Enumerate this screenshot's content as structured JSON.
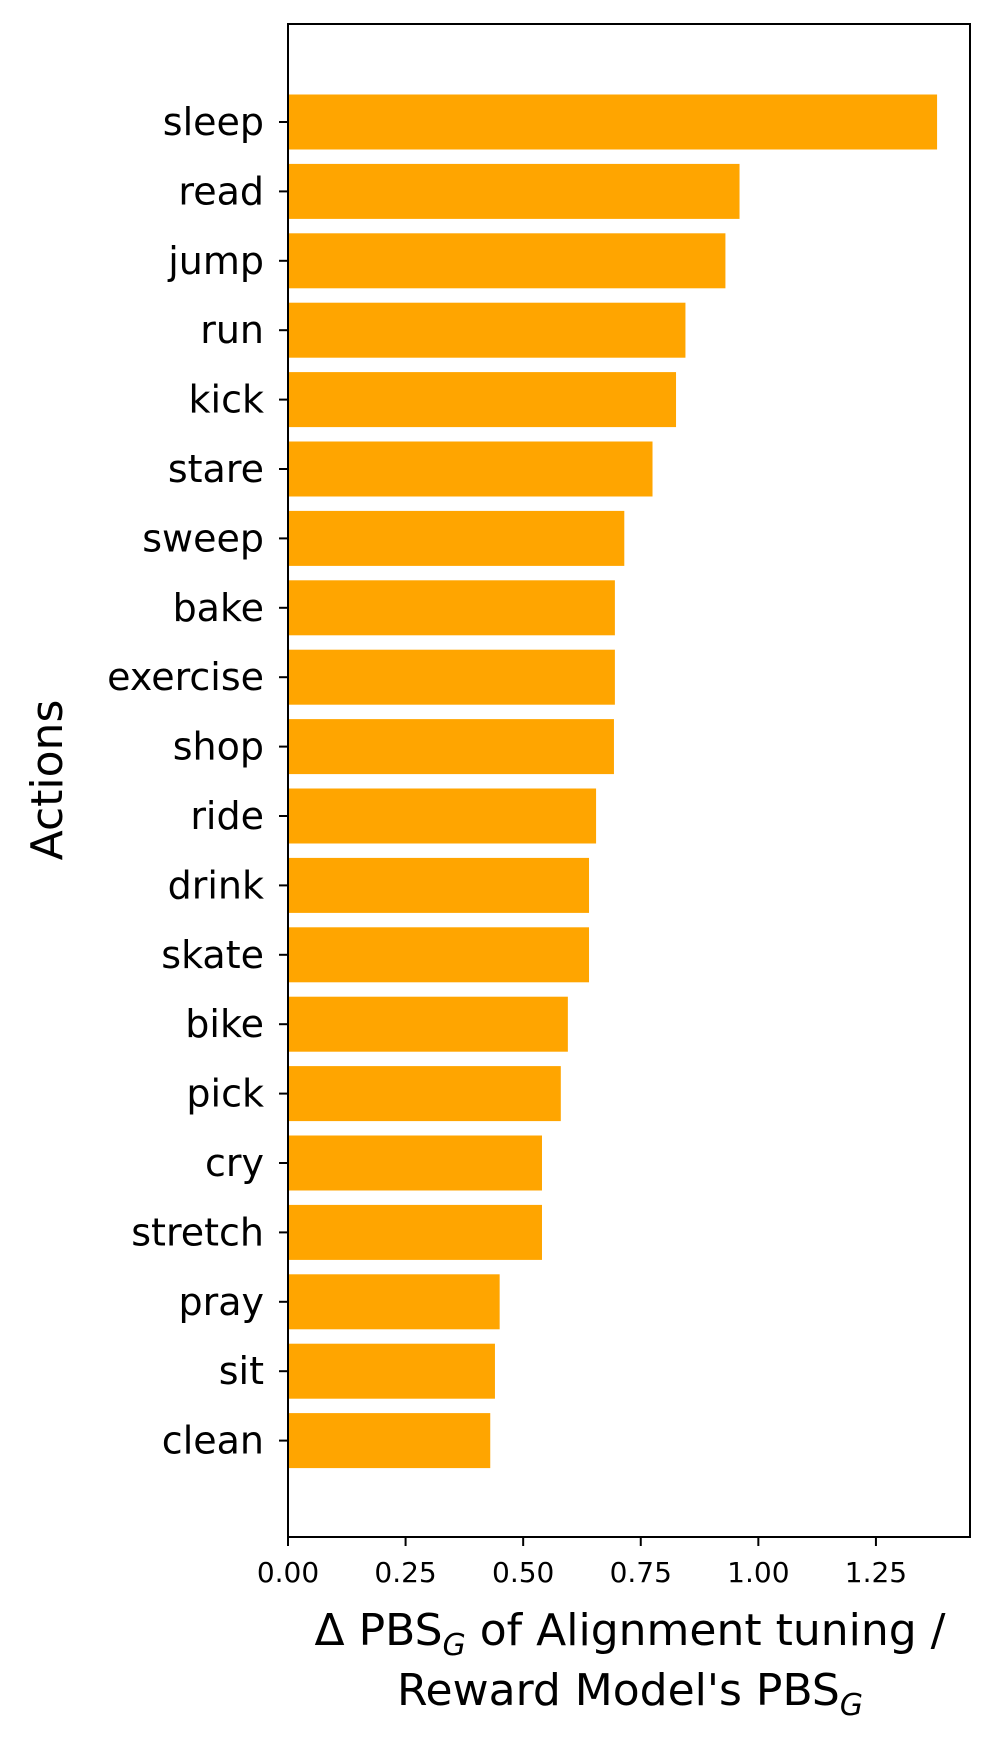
{
  "chart_data": {
    "type": "bar",
    "orientation": "horizontal",
    "categories": [
      "sleep",
      "read",
      "jump",
      "run",
      "kick",
      "stare",
      "sweep",
      "bake",
      "exercise",
      "shop",
      "ride",
      "drink",
      "skate",
      "bike",
      "pick",
      "cry",
      "stretch",
      "pray",
      "sit",
      "clean"
    ],
    "values": [
      1.38,
      0.96,
      0.93,
      0.845,
      0.825,
      0.775,
      0.715,
      0.695,
      0.695,
      0.693,
      0.655,
      0.64,
      0.64,
      0.595,
      0.58,
      0.54,
      0.54,
      0.45,
      0.44,
      0.43
    ],
    "bar_color": "#FFA500",
    "xlim": [
      0,
      1.45
    ],
    "xticks": [
      "0.00",
      "0.25",
      "0.50",
      "0.75",
      "1.00",
      "1.25"
    ],
    "ylabel": "Actions",
    "xlabel": {
      "line1_prefix": "Δ PBS",
      "line1_sub": "G",
      "line1_suffix": " of Alignment tuning /",
      "line2_prefix": "Reward Model's PBS",
      "line2_sub": "G"
    },
    "grid": false,
    "legend": "none"
  }
}
